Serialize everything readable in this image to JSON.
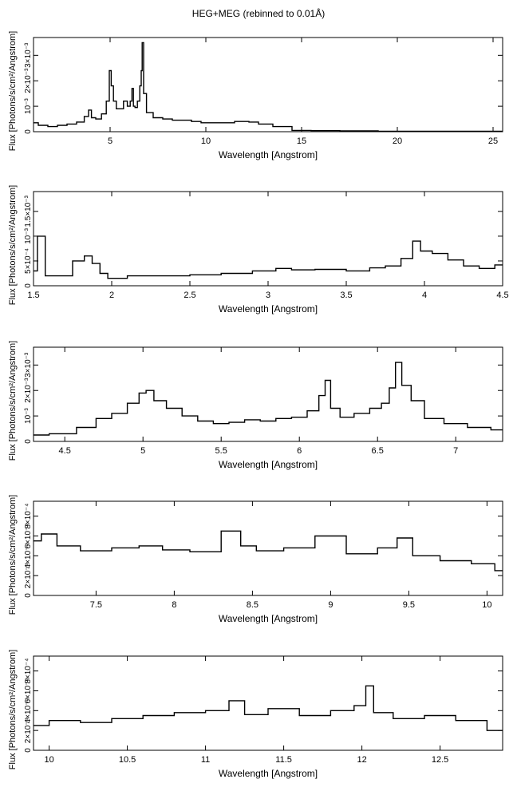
{
  "title": "HEG+MEG (rebinned to 0.01Å)",
  "chart_data": [
    {
      "type": "line",
      "title": "HEG+MEG (rebinned to 0.01Å)",
      "xlabel": "Wavelength [Angstrom]",
      "ylabel": "Flux [Photons/s/cm²/Angstrom]",
      "xlim": [
        1.0,
        25.5
      ],
      "ylim": [
        0,
        0.0037
      ],
      "xticks": [
        5,
        10,
        15,
        20,
        25
      ],
      "xtick_labels": [
        "5",
        "10",
        "15",
        "20",
        "25"
      ],
      "yticks": [
        0,
        0.001,
        0.002,
        0.003
      ],
      "ytick_labels": [
        "0",
        "10⁻³",
        "2×10⁻³",
        "3×10⁻³"
      ],
      "series": [
        {
          "x": [
            1.0,
            1.5,
            2.0,
            2.5,
            3.0,
            3.5,
            3.8,
            3.95,
            4.1,
            4.4,
            4.7,
            4.9,
            5.02,
            5.1,
            5.25,
            5.4,
            5.6,
            5.8,
            6.0,
            6.1,
            6.18,
            6.25,
            6.35,
            6.5,
            6.6,
            6.65,
            6.7,
            6.8,
            7.0,
            7.5,
            8.0,
            8.5,
            9.0,
            9.5,
            10.0,
            11.0,
            12.0,
            12.5,
            13.0,
            14.0,
            15.0,
            16.0,
            18.0,
            20.0,
            22.0,
            25.5
          ],
          "y": [
            0.00035,
            0.00025,
            0.0002,
            0.00025,
            0.0003,
            0.00038,
            0.0006,
            0.00085,
            0.00055,
            0.0005,
            0.0007,
            0.0012,
            0.0024,
            0.0018,
            0.0012,
            0.0009,
            0.0009,
            0.0012,
            0.001,
            0.0012,
            0.0017,
            0.001,
            0.00095,
            0.0012,
            0.0018,
            0.0024,
            0.0035,
            0.0015,
            0.00075,
            0.00055,
            0.0005,
            0.00045,
            0.00045,
            0.0004,
            0.00035,
            0.00035,
            0.0004,
            0.00038,
            0.0003,
            0.0002,
            5e-05,
            4e-05,
            3e-05,
            2e-05,
            2e-05,
            2e-05
          ]
        }
      ]
    },
    {
      "type": "line",
      "xlabel": "Wavelength [Angstrom]",
      "ylabel": "Flux [Photons/s/cm²/Angstrom]",
      "xlim": [
        1.5,
        4.5
      ],
      "ylim": [
        0,
        0.0019
      ],
      "xticks": [
        1.5,
        2,
        2.5,
        3,
        3.5,
        4,
        4.5
      ],
      "xtick_labels": [
        "1.5",
        "2",
        "2.5",
        "3",
        "3.5",
        "4",
        "4.5"
      ],
      "yticks": [
        0,
        0.0005,
        0.001,
        0.0015
      ],
      "ytick_labels": [
        "0",
        "5×10⁻⁴",
        "10⁻³",
        "1.5×10⁻³"
      ],
      "series": [
        {
          "x": [
            1.5,
            1.55,
            1.6,
            1.7,
            1.8,
            1.85,
            1.9,
            1.95,
            2.0,
            2.2,
            2.4,
            2.6,
            2.8,
            3.0,
            3.1,
            3.2,
            3.4,
            3.6,
            3.7,
            3.8,
            3.9,
            3.95,
            4.0,
            4.1,
            4.2,
            4.3,
            4.4,
            4.5
          ],
          "y": [
            0.0003,
            0.001,
            0.0002,
            0.0002,
            0.0005,
            0.0006,
            0.00045,
            0.00025,
            0.00015,
            0.0002,
            0.0002,
            0.00022,
            0.00025,
            0.0003,
            0.00035,
            0.00032,
            0.00033,
            0.0003,
            0.00036,
            0.0004,
            0.00055,
            0.0009,
            0.0007,
            0.00065,
            0.00052,
            0.0004,
            0.00035,
            0.00042
          ]
        }
      ]
    },
    {
      "type": "line",
      "xlabel": "Wavelength [Angstrom]",
      "ylabel": "Flux [Photons/s/cm²/Angstrom]",
      "xlim": [
        4.3,
        7.3
      ],
      "ylim": [
        0,
        0.0037
      ],
      "xticks": [
        4.5,
        5,
        5.5,
        6,
        6.5,
        7
      ],
      "xtick_labels": [
        "4.5",
        "5",
        "5.5",
        "6",
        "6.5",
        "7"
      ],
      "yticks": [
        0,
        0.001,
        0.002,
        0.003
      ],
      "ytick_labels": [
        "0",
        "10⁻³",
        "2×10⁻³",
        "3×10⁻³"
      ],
      "series": [
        {
          "x": [
            4.3,
            4.5,
            4.65,
            4.75,
            4.85,
            4.95,
            5.0,
            5.04,
            5.1,
            5.2,
            5.3,
            5.4,
            5.5,
            5.6,
            5.7,
            5.8,
            5.9,
            6.0,
            6.1,
            6.15,
            6.18,
            6.22,
            6.3,
            6.4,
            6.5,
            6.55,
            6.6,
            6.63,
            6.68,
            6.75,
            6.85,
            7.0,
            7.15,
            7.3
          ],
          "y": [
            0.00025,
            0.0003,
            0.00055,
            0.0009,
            0.0011,
            0.0015,
            0.0019,
            0.002,
            0.0016,
            0.0013,
            0.001,
            0.0008,
            0.0007,
            0.00075,
            0.00085,
            0.0008,
            0.0009,
            0.00095,
            0.0012,
            0.0018,
            0.0024,
            0.0013,
            0.00095,
            0.0011,
            0.0013,
            0.0015,
            0.0021,
            0.0031,
            0.0022,
            0.0016,
            0.0009,
            0.0007,
            0.00055,
            0.00045
          ]
        }
      ]
    },
    {
      "type": "line",
      "xlabel": "Wavelength [Angstrom]",
      "ylabel": "Flux [Photons/s/cm²/Angstrom]",
      "xlim": [
        7.1,
        10.1
      ],
      "ylim": [
        0,
        0.00095
      ],
      "xticks": [
        7.5,
        8,
        8.5,
        9,
        9.5,
        10
      ],
      "xtick_labels": [
        "7.5",
        "8",
        "8.5",
        "9",
        "9.5",
        "10"
      ],
      "yticks": [
        0,
        0.0002,
        0.0004,
        0.0006,
        0.0008
      ],
      "ytick_labels": [
        "0",
        "2×10⁻⁴",
        "4×10⁻⁴",
        "6×10⁻⁴",
        "8×10⁻⁴"
      ],
      "series": [
        {
          "x": [
            7.1,
            7.2,
            7.3,
            7.5,
            7.7,
            7.85,
            8.0,
            8.2,
            8.4,
            8.45,
            8.6,
            8.8,
            9.0,
            9.2,
            9.4,
            9.45,
            9.6,
            9.8,
            10.0,
            10.1
          ],
          "y": [
            0.00055,
            0.00062,
            0.0005,
            0.00045,
            0.00048,
            0.0005,
            0.00046,
            0.00044,
            0.00065,
            0.0005,
            0.00045,
            0.00048,
            0.0006,
            0.00042,
            0.00048,
            0.00058,
            0.0004,
            0.00035,
            0.00032,
            0.00025
          ]
        }
      ]
    },
    {
      "type": "line",
      "xlabel": "Wavelength [Angstrom]",
      "ylabel": "Flux [Photons/s/cm²/Angstrom]",
      "xlim": [
        9.9,
        12.9
      ],
      "ylim": [
        0,
        0.00095
      ],
      "xticks": [
        10,
        10.5,
        11,
        11.5,
        12,
        12.5
      ],
      "xtick_labels": [
        "10",
        "10.5",
        "11",
        "11.5",
        "12",
        "12.5"
      ],
      "yticks": [
        0,
        0.0002,
        0.0004,
        0.0006,
        0.0008
      ],
      "ytick_labels": [
        "0",
        "2×10⁻⁴",
        "4×10⁻⁴",
        "6×10⁻⁴",
        "8×10⁻⁴"
      ],
      "series": [
        {
          "x": [
            9.9,
            10.1,
            10.3,
            10.5,
            10.7,
            10.9,
            11.1,
            11.2,
            11.3,
            11.5,
            11.7,
            11.9,
            12.0,
            12.05,
            12.1,
            12.3,
            12.5,
            12.7,
            12.9
          ],
          "y": [
            0.00025,
            0.0003,
            0.00028,
            0.00032,
            0.00035,
            0.00038,
            0.0004,
            0.0005,
            0.00036,
            0.00042,
            0.00035,
            0.0004,
            0.00045,
            0.00065,
            0.00038,
            0.00032,
            0.00035,
            0.0003,
            0.0002
          ]
        }
      ]
    }
  ]
}
